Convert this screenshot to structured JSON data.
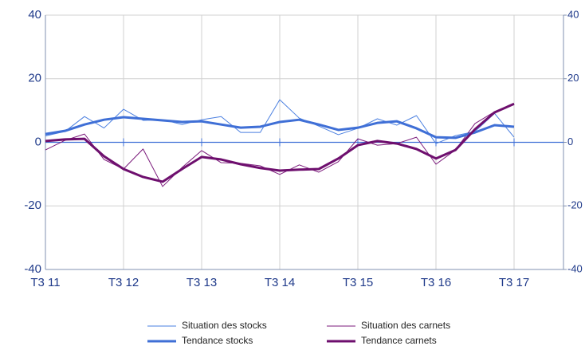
{
  "chart_data": {
    "type": "line",
    "categories": [
      "T3 11",
      null,
      null,
      null,
      "T3 12",
      null,
      null,
      null,
      "T3 13",
      null,
      null,
      null,
      "T3 14",
      null,
      null,
      null,
      "T3 15",
      null,
      null,
      null,
      "T3 16",
      null,
      null,
      null,
      "T3 17"
    ],
    "series": [
      {
        "name": "Situation des stocks",
        "color": "#4a7fe0",
        "width": 1,
        "values": [
          2,
          3.4,
          8.1,
          4.5,
          10.4,
          6.9,
          7.1,
          5.6,
          7.1,
          8.1,
          3.1,
          3.1,
          13.4,
          7.6,
          5.1,
          2.4,
          4.4,
          7.4,
          5.4,
          8.4,
          -0.4,
          2.1,
          3.4,
          9.1,
          1.6
        ]
      },
      {
        "name": "Situation des carnets",
        "color": "#7b1a7b",
        "width": 1,
        "values": [
          -2.4,
          0.6,
          2.6,
          -5.4,
          -8.4,
          -2.1,
          -13.9,
          -7.9,
          -2.6,
          -6.4,
          -6.6,
          -7.4,
          -10.1,
          -7.1,
          -9.4,
          -6.1,
          1.1,
          -0.9,
          -0.4,
          1.6,
          -6.9,
          -2.4,
          5.9,
          9.6,
          12.1
        ]
      },
      {
        "name": "Tendance stocks",
        "color": "#3f6fd6",
        "width": 3,
        "values": [
          2.6,
          3.6,
          5.6,
          7.1,
          7.9,
          7.4,
          6.9,
          6.4,
          6.6,
          5.6,
          4.6,
          4.9,
          6.4,
          7.1,
          5.6,
          3.9,
          4.6,
          6.1,
          6.6,
          4.4,
          1.6,
          1.4,
          3.1,
          5.4,
          4.9
        ]
      },
      {
        "name": "Tendance carnets",
        "color": "#6e0f6e",
        "width": 3,
        "values": [
          0.4,
          0.9,
          1.1,
          -4.4,
          -8.4,
          -10.9,
          -12.4,
          -8.4,
          -4.6,
          -5.4,
          -6.9,
          -8.1,
          -8.9,
          -8.6,
          -8.4,
          -5.1,
          -0.9,
          0.4,
          -0.4,
          -2.1,
          -5.1,
          -2.4,
          4.1,
          9.4,
          12.1
        ]
      }
    ],
    "ylim": [
      -40,
      40
    ],
    "yticks": [
      -40,
      -20,
      0,
      20,
      40
    ],
    "y2lim": [
      -40,
      40
    ],
    "y2ticks": [
      -40,
      -20,
      0,
      20,
      40
    ],
    "grid": true
  }
}
